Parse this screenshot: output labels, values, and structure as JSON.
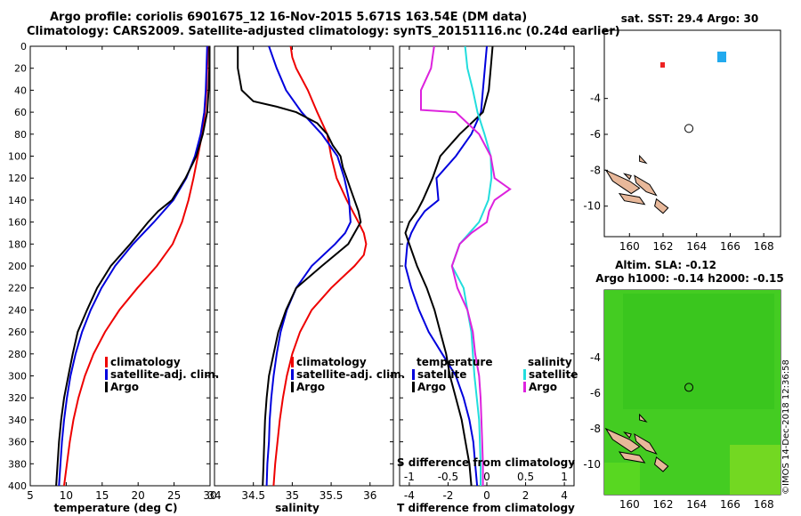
{
  "titles": {
    "line1": "Argo profile: coriolis 6901675_12 16-Nov-2015 5.671S 163.54E (DM data)",
    "line2": "Climatology: CARS2009. Satellite-adjusted climatology: synTS_20151116.nc (0.24d earlier)"
  },
  "stamp": "©IMOS 14-Dec-2018 12:36:58",
  "colors": {
    "climatology": "#ee0000",
    "satellite": "#0000dd",
    "argo": "#000000",
    "sal_satellite": "#22dddd",
    "sal_argo": "#dd22dd"
  },
  "chart_data": [
    {
      "type": "line",
      "id": "temperature",
      "xlabel": "temperature (deg C)",
      "xlim": [
        5,
        30
      ],
      "xticks": [
        5,
        10,
        15,
        20,
        25,
        30
      ],
      "ylim": [
        0,
        400
      ],
      "yticks": [
        0,
        20,
        40,
        60,
        80,
        100,
        120,
        140,
        160,
        180,
        200,
        220,
        240,
        260,
        280,
        300,
        320,
        340,
        360,
        380,
        400
      ],
      "legend": [
        "climatology",
        "satellite-adj. clim.",
        "Argo"
      ],
      "series": [
        {
          "name": "climatology",
          "color": "#ee0000",
          "depth": [
            0,
            20,
            40,
            60,
            80,
            100,
            120,
            140,
            160,
            180,
            200,
            220,
            240,
            260,
            280,
            300,
            320,
            340,
            360,
            380,
            400
          ],
          "values": [
            29.7,
            29.6,
            29.5,
            29.3,
            28.9,
            28.3,
            27.7,
            27.0,
            26.1,
            24.8,
            22.6,
            19.9,
            17.4,
            15.4,
            13.8,
            12.6,
            11.7,
            11.0,
            10.5,
            10.1,
            9.7
          ]
        },
        {
          "name": "satellite-adj. clim.",
          "color": "#0000dd",
          "depth": [
            0,
            20,
            40,
            60,
            80,
            100,
            120,
            140,
            160,
            180,
            200,
            220,
            240,
            260,
            280,
            300,
            320,
            340,
            360,
            380,
            400
          ],
          "values": [
            29.6,
            29.5,
            29.4,
            29.2,
            28.7,
            27.9,
            26.7,
            24.9,
            22.2,
            19.3,
            16.8,
            14.9,
            13.4,
            12.2,
            11.3,
            10.6,
            10.1,
            9.7,
            9.4,
            9.2,
            9.0
          ]
        },
        {
          "name": "Argo",
          "color": "#000000",
          "depth": [
            0,
            20,
            40,
            60,
            80,
            100,
            120,
            140,
            150,
            160,
            180,
            200,
            220,
            240,
            260,
            280,
            300,
            320,
            340,
            360,
            380,
            400
          ],
          "values": [
            29.9,
            29.9,
            29.8,
            29.6,
            29.0,
            28.1,
            26.6,
            24.7,
            22.8,
            21.4,
            18.9,
            16.2,
            14.3,
            12.9,
            11.6,
            10.9,
            10.3,
            9.7,
            9.3,
            9.0,
            8.8,
            8.6
          ]
        }
      ]
    },
    {
      "type": "line",
      "id": "salinity",
      "xlabel": "salinity",
      "xlim": [
        34,
        36.3
      ],
      "xticks": [
        34,
        34.5,
        35,
        35.5,
        36
      ],
      "ylim": [
        0,
        400
      ],
      "legend": [
        "climatology",
        "satellite-adj. clim.",
        "Argo"
      ],
      "series": [
        {
          "name": "climatology",
          "color": "#ee0000",
          "depth": [
            0,
            10,
            20,
            40,
            60,
            80,
            100,
            120,
            140,
            160,
            170,
            180,
            190,
            200,
            220,
            240,
            260,
            280,
            300,
            320,
            340,
            360,
            380,
            400
          ],
          "values": [
            34.98,
            35.0,
            35.05,
            35.2,
            35.32,
            35.45,
            35.5,
            35.57,
            35.7,
            35.85,
            35.92,
            35.95,
            35.92,
            35.8,
            35.5,
            35.25,
            35.1,
            35.0,
            34.93,
            34.88,
            34.84,
            34.81,
            34.78,
            34.76
          ]
        },
        {
          "name": "satellite-adj. clim.",
          "color": "#0000dd",
          "depth": [
            0,
            10,
            20,
            40,
            60,
            80,
            100,
            120,
            140,
            160,
            170,
            180,
            200,
            220,
            240,
            260,
            280,
            300,
            320,
            340,
            360,
            380,
            400
          ],
          "values": [
            34.7,
            34.75,
            34.8,
            34.92,
            35.12,
            35.38,
            35.58,
            35.67,
            35.73,
            35.75,
            35.68,
            35.55,
            35.25,
            35.05,
            34.93,
            34.85,
            34.8,
            34.76,
            34.73,
            34.71,
            34.7,
            34.68,
            34.67
          ]
        },
        {
          "name": "Argo",
          "color": "#000000",
          "depth": [
            0,
            20,
            40,
            50,
            55,
            60,
            70,
            80,
            90,
            100,
            110,
            120,
            130,
            140,
            150,
            160,
            180,
            200,
            220,
            240,
            260,
            280,
            300,
            320,
            340,
            360,
            380,
            400
          ],
          "values": [
            34.3,
            34.3,
            34.35,
            34.5,
            34.8,
            35.05,
            35.32,
            35.45,
            35.52,
            35.62,
            35.65,
            35.7,
            35.75,
            35.8,
            35.85,
            35.88,
            35.72,
            35.38,
            35.05,
            34.92,
            34.82,
            34.76,
            34.7,
            34.67,
            34.65,
            34.64,
            34.63,
            34.62
          ]
        }
      ]
    },
    {
      "type": "line",
      "id": "differences",
      "xlabel": "T difference from climatology",
      "xlabel_top": "S difference from climatology",
      "xlim": [
        -4.5,
        4.5
      ],
      "xticks": [
        -4,
        -2,
        0,
        2,
        4
      ],
      "xticks_top": [
        -1,
        -0.5,
        0,
        0.5,
        1
      ],
      "ylim": [
        0,
        400
      ],
      "legend_temperature": {
        "heading": "temperature",
        "items": [
          "satellite",
          "Argo"
        ]
      },
      "legend_salinity": {
        "heading": "salinity",
        "items": [
          "satellite",
          "Argo"
        ]
      },
      "series": [
        {
          "name": "temperature satellite",
          "color": "#0000dd",
          "depth": [
            0,
            20,
            40,
            60,
            80,
            100,
            120,
            140,
            150,
            160,
            170,
            180,
            200,
            220,
            240,
            260,
            280,
            300,
            320,
            340,
            360,
            380,
            400
          ],
          "values": [
            0,
            -0.1,
            -0.2,
            -0.3,
            -0.8,
            -1.6,
            -2.6,
            -2.5,
            -3.2,
            -3.6,
            -3.9,
            -4.1,
            -4.2,
            -3.9,
            -3.5,
            -3.0,
            -2.3,
            -1.6,
            -1.2,
            -0.9,
            -0.7,
            -0.6,
            -0.5
          ]
        },
        {
          "name": "temperature Argo",
          "color": "#000000",
          "depth": [
            0,
            20,
            40,
            60,
            80,
            100,
            120,
            140,
            150,
            160,
            170,
            180,
            200,
            220,
            240,
            260,
            280,
            300,
            320,
            340,
            360,
            380,
            400
          ],
          "values": [
            0.3,
            0.2,
            0.1,
            -0.2,
            -1.4,
            -2.4,
            -2.8,
            -3.3,
            -3.6,
            -4.0,
            -4.2,
            -4.0,
            -3.6,
            -3.1,
            -2.7,
            -2.4,
            -2.1,
            -1.9,
            -1.6,
            -1.3,
            -1.1,
            -0.9,
            -0.8
          ]
        },
        {
          "name": "salinity satellite",
          "color": "#22dddd",
          "depth": [
            0,
            20,
            40,
            60,
            80,
            100,
            120,
            140,
            160,
            180,
            200,
            220,
            240,
            260,
            280,
            300,
            320,
            340,
            360,
            380,
            400
          ],
          "values": [
            -0.28,
            -0.25,
            -0.18,
            -0.12,
            -0.03,
            0.05,
            0.06,
            0.02,
            -0.1,
            -0.35,
            -0.45,
            -0.3,
            -0.25,
            -0.2,
            -0.18,
            -0.16,
            -0.13,
            -0.1,
            -0.09,
            -0.08,
            -0.08
          ]
        },
        {
          "name": "salinity Argo",
          "color": "#dd22dd",
          "depth": [
            0,
            10,
            20,
            40,
            58,
            60,
            80,
            100,
            120,
            130,
            140,
            150,
            160,
            170,
            180,
            200,
            220,
            240,
            260,
            280,
            300,
            320,
            340,
            360,
            380,
            400
          ],
          "values": [
            -0.68,
            -0.7,
            -0.72,
            -0.85,
            -0.85,
            -0.4,
            -0.1,
            0.05,
            0.1,
            0.3,
            0.1,
            0.03,
            0.0,
            -0.2,
            -0.35,
            -0.45,
            -0.38,
            -0.25,
            -0.18,
            -0.15,
            -0.1,
            -0.08,
            -0.07,
            -0.06,
            -0.05,
            -0.05
          ]
        }
      ]
    },
    {
      "type": "heatmap",
      "id": "sst_map",
      "title": "sat. SST: 29.4 Argo: 30",
      "xticks": [
        160,
        162,
        164,
        166,
        168
      ],
      "yticks": [
        -4,
        -6,
        -8,
        -10
      ],
      "xlim": [
        158.5,
        169
      ],
      "ylim": [
        -11.7,
        -0.2
      ],
      "argo_position": {
        "lon": 163.54,
        "lat": -5.671
      }
    },
    {
      "type": "heatmap",
      "id": "sla_map",
      "title": "Altim. SLA: -0.12",
      "subtitle": "Argo h1000: -0.14 h2000: -0.15",
      "xticks": [
        160,
        162,
        164,
        166,
        168
      ],
      "yticks": [
        -4,
        -6,
        -8,
        -10
      ],
      "xlim": [
        158.5,
        169
      ],
      "ylim": [
        -11.7,
        -0.2
      ],
      "argo_position": {
        "lon": 163.54,
        "lat": -5.671
      }
    }
  ]
}
